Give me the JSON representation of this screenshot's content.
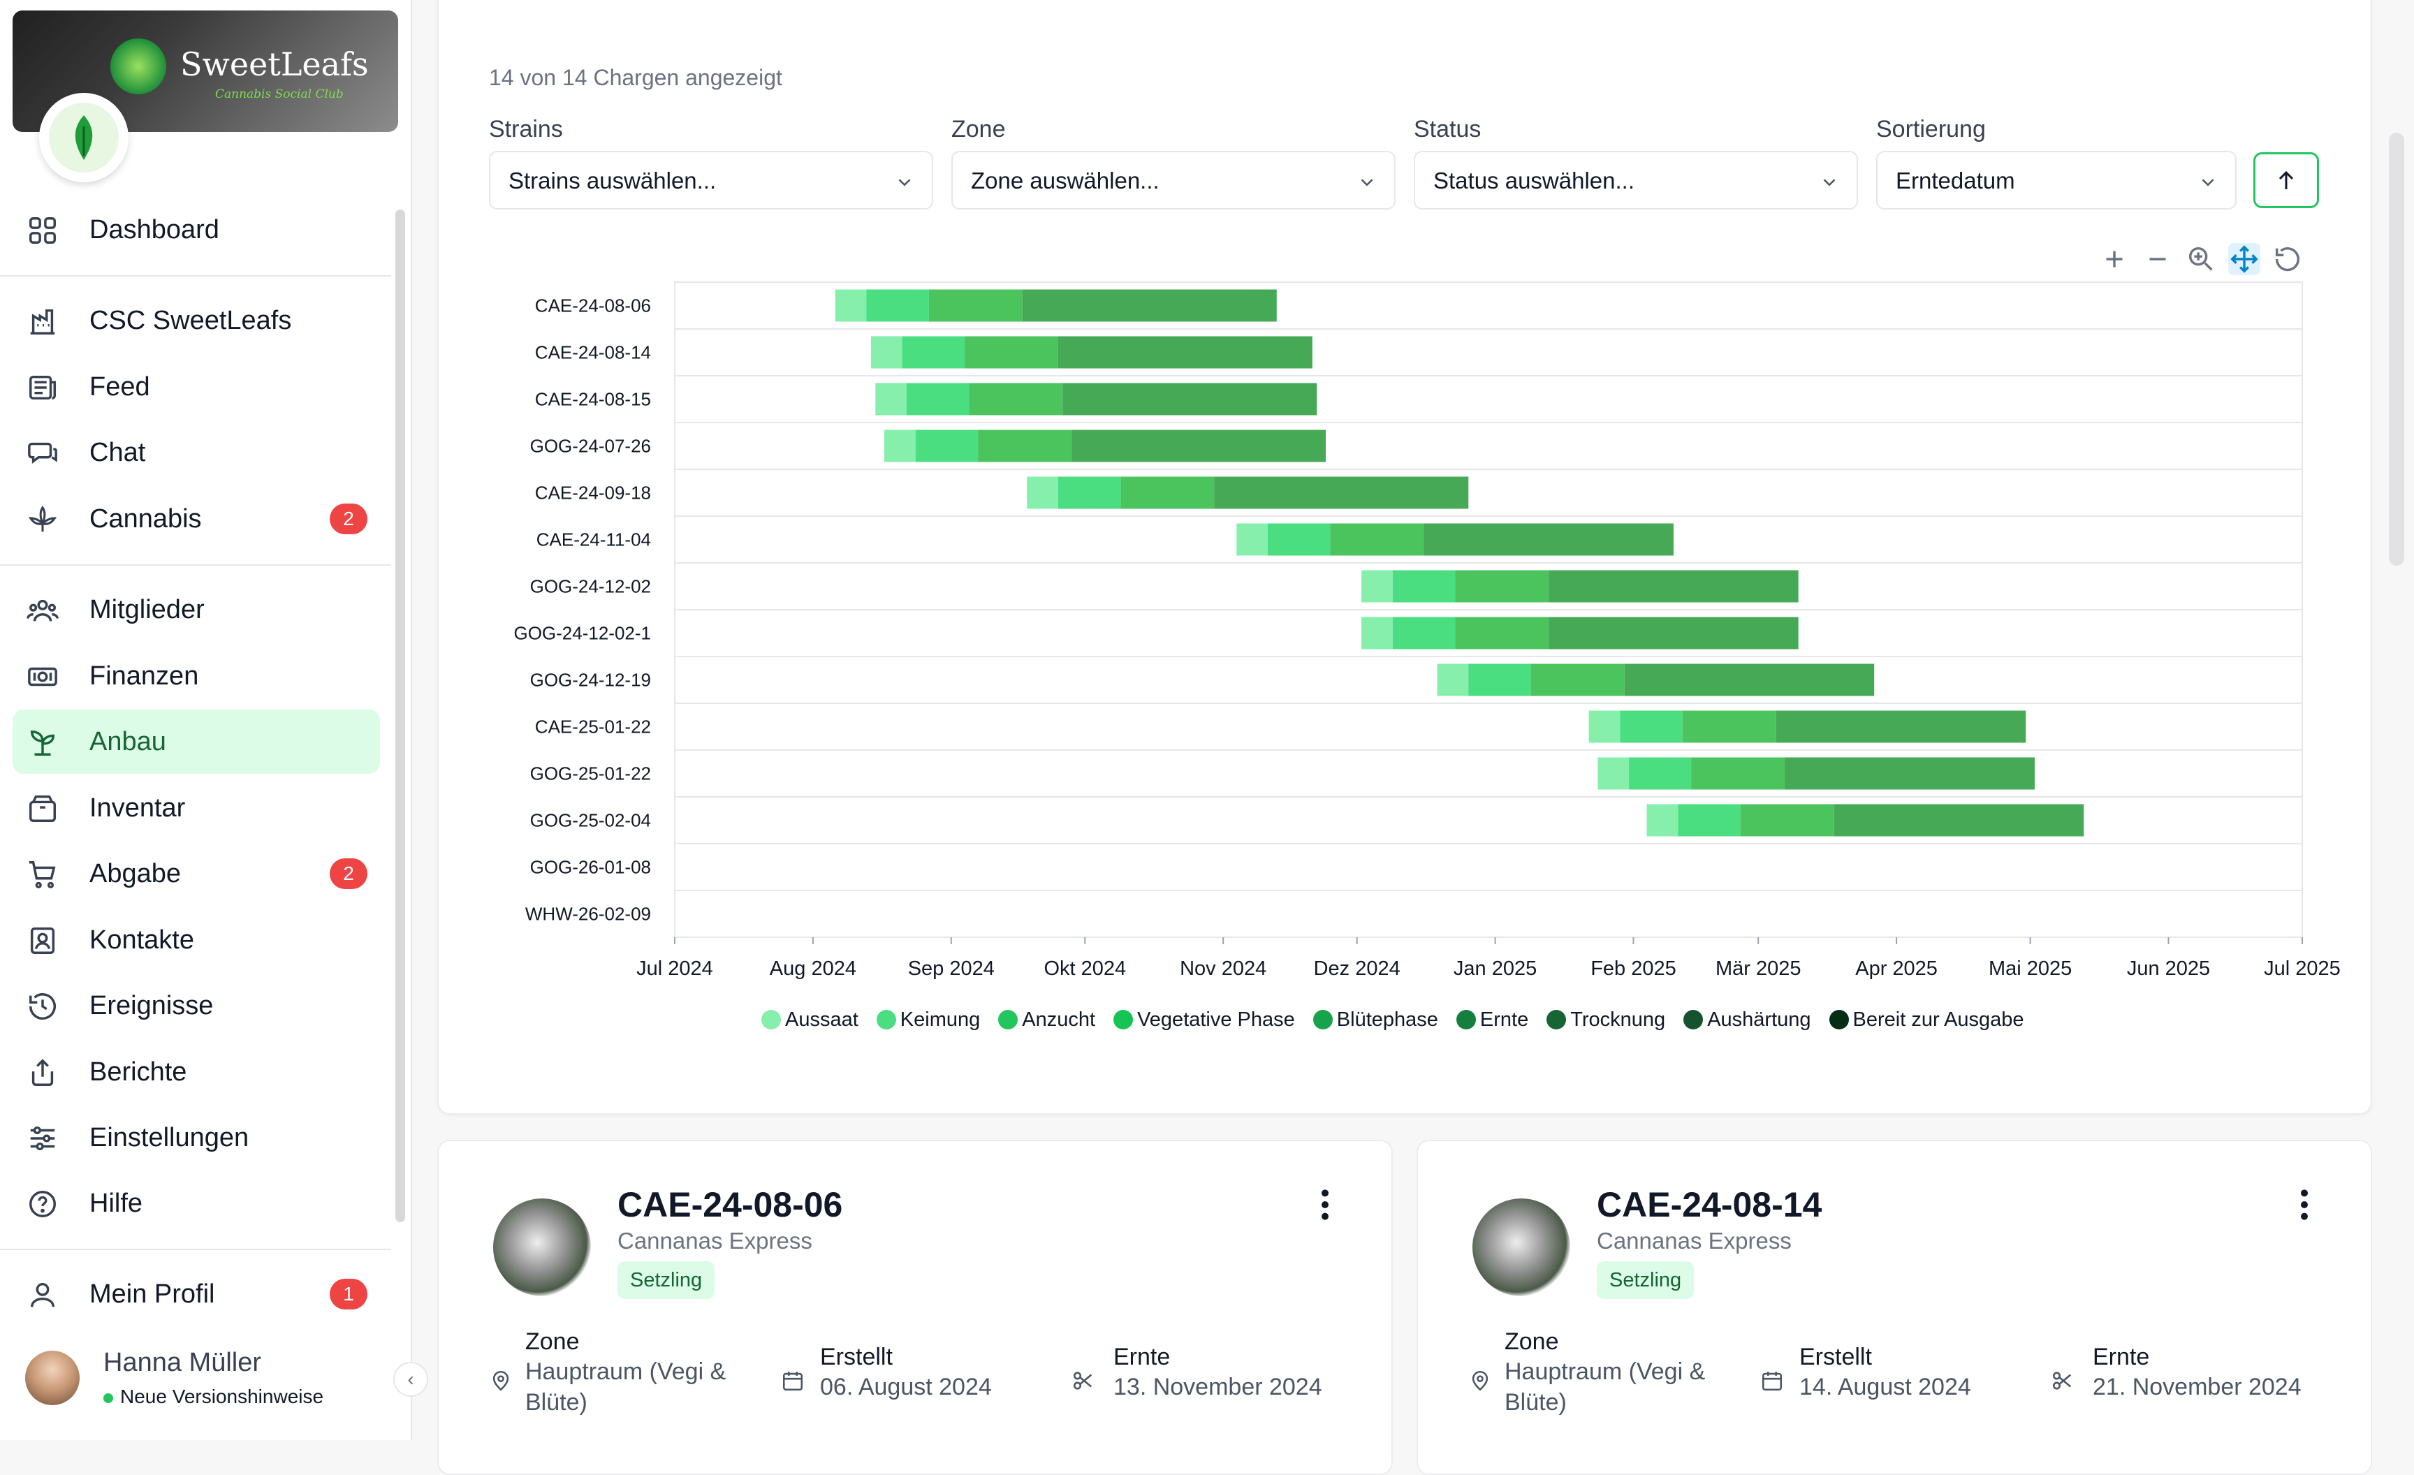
{
  "sidebar": {
    "brand": "SweetLeafs",
    "tagline": "Cannabis Social Club",
    "items": [
      {
        "label": "Dashboard",
        "icon": "dashboard-grid-icon"
      },
      {
        "label": "CSC SweetLeafs",
        "icon": "building-icon"
      },
      {
        "label": "Feed",
        "icon": "newspaper-icon"
      },
      {
        "label": "Chat",
        "icon": "chat-bubbles-icon"
      },
      {
        "label": "Cannabis",
        "icon": "cannabis-leaf-icon",
        "badge": "2"
      },
      {
        "label": "Mitglieder",
        "icon": "users-icon"
      },
      {
        "label": "Finanzen",
        "icon": "banknote-icon"
      },
      {
        "label": "Anbau",
        "icon": "sprout-icon",
        "active": true
      },
      {
        "label": "Inventar",
        "icon": "box-icon"
      },
      {
        "label": "Abgabe",
        "icon": "cart-icon",
        "badge": "2"
      },
      {
        "label": "Kontakte",
        "icon": "contact-book-icon"
      },
      {
        "label": "Ereignisse",
        "icon": "history-icon"
      },
      {
        "label": "Berichte",
        "icon": "share-upload-icon"
      },
      {
        "label": "Einstellungen",
        "icon": "sliders-icon"
      },
      {
        "label": "Hilfe",
        "icon": "help-circle-icon"
      },
      {
        "label": "Mein Profil",
        "icon": "user-icon",
        "badge": "1"
      }
    ],
    "user": {
      "name": "Hanna Müller",
      "status": "Neue Versionshinweise"
    }
  },
  "main": {
    "count_text": "14 von 14 Chargen angezeigt",
    "filters": [
      {
        "label": "Strains",
        "value": "Strains auswählen..."
      },
      {
        "label": "Zone",
        "value": "Zone auswählen..."
      },
      {
        "label": "Status",
        "value": "Status auswählen..."
      },
      {
        "label": "Sortierung",
        "value": "Erntedatum"
      }
    ],
    "toolbar_icons": [
      "zoom-in-plus-icon",
      "zoom-out-minus-icon",
      "magnifier-zoom-icon",
      "pan-move-icon",
      "reset-icon"
    ]
  },
  "colors": {
    "accent": "#22c55e",
    "active_bg": "#dcfce7",
    "badge": "#ef4444"
  },
  "chart_data": {
    "type": "gantt",
    "x_ticks": [
      "Jul 2024",
      "Aug 2024",
      "Sep 2024",
      "Okt 2024",
      "Nov 2024",
      "Dez 2024",
      "Jan 2025",
      "Feb 2025",
      "Mär 2025",
      "Apr 2025",
      "Mai 2025",
      "Jun 2025",
      "Jul 2025"
    ],
    "xlim": [
      "2024-07-01",
      "2025-07-01"
    ],
    "grid": true,
    "legend_position": "bottom",
    "phases": [
      {
        "name": "Aussaat",
        "color": "#86efac"
      },
      {
        "name": "Keimung",
        "color": "#4ade80"
      },
      {
        "name": "Anzucht",
        "color": "#22c55e"
      },
      {
        "name": "Vegetative Phase",
        "color": "#16c453"
      },
      {
        "name": "Blütephase",
        "color": "#16a34a"
      },
      {
        "name": "Ernte",
        "color": "#15803d"
      },
      {
        "name": "Trocknung",
        "color": "#166534"
      },
      {
        "name": "Aushärtung",
        "color": "#14532d"
      },
      {
        "name": "Bereit zur Ausgabe",
        "color": "#052e16"
      }
    ],
    "bar_colors": [
      "#86efac",
      "#4ade80",
      "#4cc45e",
      "#45a955"
    ],
    "batches": [
      {
        "name": "CAE-24-08-06",
        "segments": [
          [
            "2024-08-06",
            "2024-08-13"
          ],
          [
            "2024-08-13",
            "2024-08-27"
          ],
          [
            "2024-08-27",
            "2024-09-17"
          ],
          [
            "2024-09-17",
            "2024-11-13"
          ]
        ]
      },
      {
        "name": "CAE-24-08-14",
        "segments": [
          [
            "2024-08-14",
            "2024-08-21"
          ],
          [
            "2024-08-21",
            "2024-09-04"
          ],
          [
            "2024-09-04",
            "2024-09-25"
          ],
          [
            "2024-09-25",
            "2024-11-21"
          ]
        ]
      },
      {
        "name": "CAE-24-08-15",
        "segments": [
          [
            "2024-08-15",
            "2024-08-22"
          ],
          [
            "2024-08-22",
            "2024-09-05"
          ],
          [
            "2024-09-05",
            "2024-09-26"
          ],
          [
            "2024-09-26",
            "2024-11-22"
          ]
        ]
      },
      {
        "name": "GOG-24-07-26",
        "segments": [
          [
            "2024-08-17",
            "2024-08-24"
          ],
          [
            "2024-08-24",
            "2024-09-07"
          ],
          [
            "2024-09-07",
            "2024-09-28"
          ],
          [
            "2024-09-28",
            "2024-11-24"
          ]
        ]
      },
      {
        "name": "CAE-24-09-18",
        "segments": [
          [
            "2024-09-18",
            "2024-09-25"
          ],
          [
            "2024-09-25",
            "2024-10-09"
          ],
          [
            "2024-10-09",
            "2024-10-30"
          ],
          [
            "2024-10-30",
            "2024-12-26"
          ]
        ]
      },
      {
        "name": "CAE-24-11-04",
        "segments": [
          [
            "2024-11-04",
            "2024-11-11"
          ],
          [
            "2024-11-11",
            "2024-11-25"
          ],
          [
            "2024-11-25",
            "2024-12-16"
          ],
          [
            "2024-12-16",
            "2025-02-10"
          ]
        ]
      },
      {
        "name": "GOG-24-12-02",
        "segments": [
          [
            "2024-12-02",
            "2024-12-09"
          ],
          [
            "2024-12-09",
            "2024-12-23"
          ],
          [
            "2024-12-23",
            "2025-01-13"
          ],
          [
            "2025-01-13",
            "2025-03-10"
          ]
        ]
      },
      {
        "name": "GOG-24-12-02-1",
        "segments": [
          [
            "2024-12-02",
            "2024-12-09"
          ],
          [
            "2024-12-09",
            "2024-12-23"
          ],
          [
            "2024-12-23",
            "2025-01-13"
          ],
          [
            "2025-01-13",
            "2025-03-10"
          ]
        ]
      },
      {
        "name": "GOG-24-12-19",
        "segments": [
          [
            "2024-12-19",
            "2024-12-26"
          ],
          [
            "2024-12-26",
            "2025-01-09"
          ],
          [
            "2025-01-09",
            "2025-01-30"
          ],
          [
            "2025-01-30",
            "2025-03-27"
          ]
        ]
      },
      {
        "name": "CAE-25-01-22",
        "segments": [
          [
            "2025-01-22",
            "2025-01-29"
          ],
          [
            "2025-01-29",
            "2025-02-12"
          ],
          [
            "2025-02-12",
            "2025-03-05"
          ],
          [
            "2025-03-05",
            "2025-04-30"
          ]
        ]
      },
      {
        "name": "GOG-25-01-22",
        "segments": [
          [
            "2025-01-24",
            "2025-01-31"
          ],
          [
            "2025-01-31",
            "2025-02-14"
          ],
          [
            "2025-02-14",
            "2025-03-07"
          ],
          [
            "2025-03-07",
            "2025-05-02"
          ]
        ]
      },
      {
        "name": "GOG-25-02-04",
        "segments": [
          [
            "2025-02-04",
            "2025-02-11"
          ],
          [
            "2025-02-11",
            "2025-02-25"
          ],
          [
            "2025-02-25",
            "2025-03-18"
          ],
          [
            "2025-03-18",
            "2025-05-13"
          ]
        ]
      },
      {
        "name": "GOG-26-01-08",
        "segments": []
      },
      {
        "name": "WHW-26-02-09",
        "segments": []
      }
    ]
  },
  "cards": [
    {
      "title": "CAE-24-08-06",
      "strain": "Cannanas Express",
      "status": "Setzling",
      "zone_label": "Zone",
      "zone_value": "Hauptraum (Vegi & Blüte)",
      "created_label": "Erstellt",
      "created_value": "06. August 2024",
      "harvest_label": "Ernte",
      "harvest_value": "13. November 2024"
    },
    {
      "title": "CAE-24-08-14",
      "strain": "Cannanas Express",
      "status": "Setzling",
      "zone_label": "Zone",
      "zone_value": "Hauptraum (Vegi & Blüte)",
      "created_label": "Erstellt",
      "created_value": "14. August 2024",
      "harvest_label": "Ernte",
      "harvest_value": "21. November 2024"
    }
  ]
}
